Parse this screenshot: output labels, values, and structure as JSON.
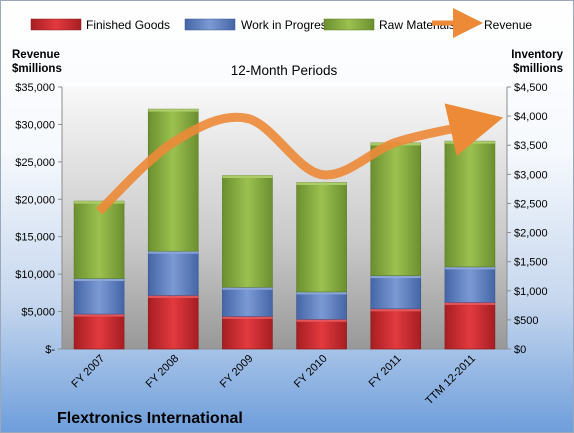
{
  "chart_data": {
    "type": "bar",
    "title": "12-Month Periods",
    "company": "Flextronics International",
    "categories": [
      "FY 2007",
      "FY 2008",
      "FY 2009",
      "FY 2010",
      "FY 2011",
      "TTM 12-2011"
    ],
    "left_axis": {
      "label_line1": "Revenue",
      "label_line2": "$millions",
      "range": [
        0,
        35000
      ],
      "tick_values": [
        0,
        5000,
        10000,
        15000,
        20000,
        25000,
        30000,
        35000
      ],
      "tick_labels": [
        "$-",
        "$5,000",
        "$10,000",
        "$15,000",
        "$20,000",
        "$25,000",
        "$30,000",
        "$35,000"
      ]
    },
    "right_axis": {
      "label_line1": "Inventory",
      "label_line2": "$millions",
      "range": [
        0,
        4500
      ],
      "tick_values": [
        0,
        500,
        1000,
        1500,
        2000,
        2500,
        3000,
        3500,
        4000,
        4500
      ],
      "tick_labels": [
        "$0",
        "$500",
        "$1,000",
        "$1,500",
        "$2,000",
        "$2,500",
        "$3,000",
        "$3,500",
        "$4,000",
        "$4,500"
      ]
    },
    "series": [
      {
        "name": "Finished Goods",
        "kind": "stacked-bar",
        "axis": "right",
        "color": "#c0262b",
        "values": [
          600,
          920,
          560,
          510,
          690,
          800
        ]
      },
      {
        "name": "Work in Progress",
        "kind": "stacked-bar",
        "axis": "right",
        "color": "#5a7dbf",
        "values": [
          610,
          760,
          500,
          470,
          570,
          610
        ]
      },
      {
        "name": "Raw Materials",
        "kind": "stacked-bar",
        "axis": "right",
        "color": "#86ab43",
        "values": [
          1330,
          2440,
          1920,
          1880,
          2280,
          2160
        ]
      },
      {
        "name": "Revenue",
        "kind": "line",
        "axis": "left",
        "color": "#ec8a37",
        "values": [
          18400,
          27600,
          30800,
          23300,
          27600,
          29900
        ]
      }
    ],
    "grid": false,
    "legend_position": "top"
  }
}
